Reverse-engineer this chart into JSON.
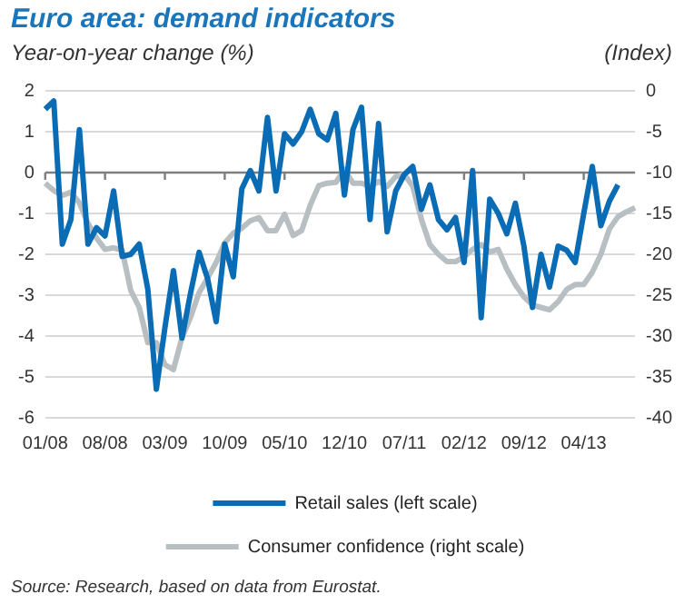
{
  "chart_data": {
    "type": "line",
    "title": "Euro area: demand indicators",
    "ylabel": "Year-on-year change (%)",
    "y2label": "(Index)",
    "categories": [
      "01/08",
      null,
      null,
      null,
      null,
      null,
      null,
      "08/08",
      null,
      null,
      null,
      null,
      null,
      null,
      "03/09",
      null,
      null,
      null,
      null,
      null,
      null,
      "10/09",
      null,
      null,
      null,
      null,
      null,
      null,
      "05/10",
      null,
      null,
      null,
      null,
      null,
      null,
      "12/10",
      null,
      null,
      null,
      null,
      null,
      null,
      "07/11",
      null,
      null,
      null,
      null,
      null,
      null,
      "02/12",
      null,
      null,
      null,
      null,
      null,
      null,
      "09/12",
      null,
      null,
      null,
      null,
      null,
      null,
      "04/13",
      null,
      null,
      null,
      null,
      null,
      null
    ],
    "series": [
      {
        "name": "Retail sales (left scale)",
        "color": "#0a6cb4",
        "values": [
          1.55,
          1.75,
          -1.75,
          -1.15,
          1.05,
          -1.75,
          -1.35,
          -1.55,
          -0.45,
          -2.05,
          -2.0,
          -1.75,
          -2.85,
          -5.3,
          -3.8,
          -2.4,
          -4.05,
          -2.95,
          -1.95,
          -2.6,
          -3.65,
          -1.75,
          -2.55,
          -0.4,
          0.05,
          -0.45,
          1.35,
          -0.45,
          0.95,
          0.7,
          1.0,
          1.55,
          0.95,
          0.8,
          1.45,
          -0.55,
          1.05,
          1.6,
          -1.15,
          1.2,
          -1.45,
          -0.45,
          -0.05,
          0.15,
          -0.9,
          -0.3,
          -1.15,
          -1.4,
          -1.1,
          -2.2,
          0.05,
          -3.55,
          -0.65,
          -1.0,
          -1.5,
          -0.75,
          -1.8,
          -3.3,
          -2.0,
          -2.8,
          -1.8,
          -1.9,
          -2.2,
          -1.0,
          0.15,
          -1.3,
          -0.7,
          -0.3,
          null,
          null
        ]
      },
      {
        "name": "Consumer confidence (right scale)",
        "color": "#b7bfc3",
        "axis": "y2",
        "values": [
          -11.3,
          -12.2,
          -12.8,
          -12.4,
          -13.7,
          -16.2,
          -18.0,
          -19.4,
          -19.2,
          -19.5,
          -24.4,
          -26.5,
          -30.8,
          -30.8,
          -33.5,
          -34.1,
          -30.2,
          -27.7,
          -24.7,
          -22.9,
          -21.0,
          -18.6,
          -17.4,
          -16.8,
          -15.9,
          -15.5,
          -17.1,
          -17.1,
          -15.1,
          -17.7,
          -17.1,
          -14.0,
          -11.6,
          -11.3,
          -11.2,
          -9.6,
          -11.3,
          -11.3,
          -11.7,
          -11.1,
          -11.7,
          -10.5,
          -10.2,
          -11.7,
          -15.7,
          -18.8,
          -20.0,
          -20.9,
          -20.9,
          -20.3,
          -19.4,
          -18.8,
          -19.7,
          -19.4,
          -21.8,
          -23.7,
          -25.2,
          -26.2,
          -26.5,
          -26.8,
          -25.8,
          -24.3,
          -23.7,
          -23.7,
          -22.2,
          -20.0,
          -16.9,
          -15.4,
          -14.8,
          -14.3
        ]
      }
    ],
    "ylim": [
      -6,
      2
    ],
    "yticks": [
      -6,
      -5,
      -4,
      -3,
      -2,
      -1,
      0,
      1,
      2
    ],
    "y2lim": [
      -40,
      0
    ],
    "y2ticks": [
      -40,
      -35,
      -30,
      -25,
      -20,
      -15,
      -10,
      -5,
      0
    ],
    "ref_lines": [
      {
        "axis": "y",
        "value": 0,
        "color": "#7f7f7f"
      }
    ],
    "grid": "y",
    "legend": "bottom",
    "annotations": [
      "Source: Research, based on data from Eurostat."
    ]
  }
}
